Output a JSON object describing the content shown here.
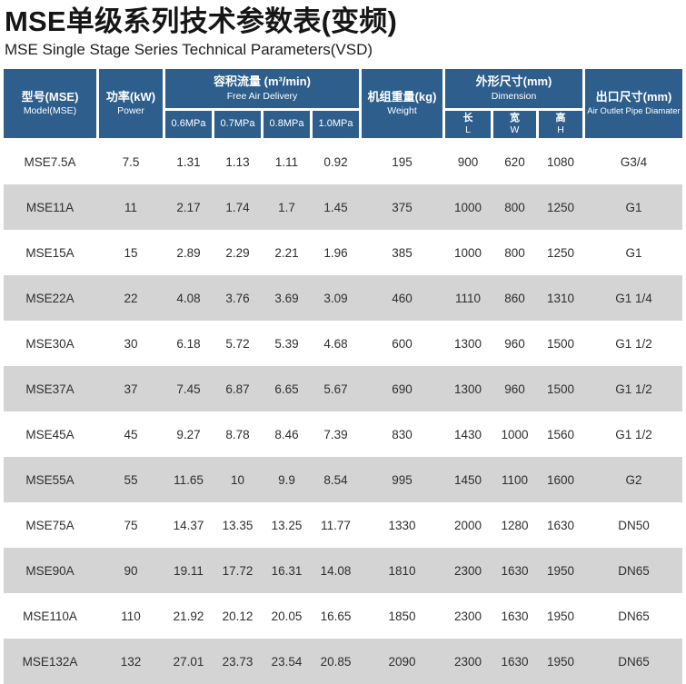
{
  "page": {
    "title": "MSE单级系列技术参数表(变频)",
    "subtitle": "MSE Single Stage Series Technical Parameters(VSD)"
  },
  "colors": {
    "header_bg": "#2d5e8c",
    "row_alt_bg": "#d4d4d4",
    "row_bg": "#ffffff",
    "data_text": "#2e2e2e"
  },
  "table": {
    "headers": {
      "model": {
        "zh": "型号(MSE)",
        "en": "Model(MSE)"
      },
      "power": {
        "zh": "功率(kW)",
        "en": "Power"
      },
      "fad": {
        "zh": "容积流量 (m³/min)",
        "en": "Free Air Delivery",
        "sub": [
          "0.6MPa",
          "0.7MPa",
          "0.8MPa",
          "1.0MPa"
        ]
      },
      "weight": {
        "zh": "机组重量(kg)",
        "en": "Weight"
      },
      "dimension": {
        "zh": "外形尺寸(mm)",
        "en": "Dimension",
        "sub": [
          {
            "zh": "长",
            "en": "L"
          },
          {
            "zh": "宽",
            "en": "W"
          },
          {
            "zh": "高",
            "en": "H"
          }
        ]
      },
      "outlet": {
        "zh": "出口尺寸(mm)",
        "en": "Air Outlet Pipe Diamater"
      }
    },
    "rows": [
      [
        "MSE7.5A",
        "7.5",
        "1.31",
        "1.13",
        "1.11",
        "0.92",
        "195",
        "900",
        "620",
        "1080",
        "G3/4"
      ],
      [
        "MSE11A",
        "11",
        "2.17",
        "1.74",
        "1.7",
        "1.45",
        "375",
        "1000",
        "800",
        "1250",
        "G1"
      ],
      [
        "MSE15A",
        "15",
        "2.89",
        "2.29",
        "2.21",
        "1.96",
        "385",
        "1000",
        "800",
        "1250",
        "G1"
      ],
      [
        "MSE22A",
        "22",
        "4.08",
        "3.76",
        "3.69",
        "3.09",
        "460",
        "1110",
        "860",
        "1310",
        "G1 1/4"
      ],
      [
        "MSE30A",
        "30",
        "6.18",
        "5.72",
        "5.39",
        "4.68",
        "600",
        "1300",
        "960",
        "1500",
        "G1 1/2"
      ],
      [
        "MSE37A",
        "37",
        "7.45",
        "6.87",
        "6.65",
        "5.67",
        "690",
        "1300",
        "960",
        "1500",
        "G1 1/2"
      ],
      [
        "MSE45A",
        "45",
        "9.27",
        "8.78",
        "8.46",
        "7.39",
        "830",
        "1430",
        "1000",
        "1560",
        "G1 1/2"
      ],
      [
        "MSE55A",
        "55",
        "11.65",
        "10",
        "9.9",
        "8.54",
        "995",
        "1450",
        "1100",
        "1600",
        "G2"
      ],
      [
        "MSE75A",
        "75",
        "14.37",
        "13.35",
        "13.25",
        "11.77",
        "1330",
        "2000",
        "1280",
        "1630",
        "DN50"
      ],
      [
        "MSE90A",
        "90",
        "19.11",
        "17.72",
        "16.31",
        "14.08",
        "1810",
        "2300",
        "1630",
        "1950",
        "DN65"
      ],
      [
        "MSE110A",
        "110",
        "21.92",
        "20.12",
        "20.05",
        "16.65",
        "1850",
        "2300",
        "1630",
        "1950",
        "DN65"
      ],
      [
        "MSE132A",
        "132",
        "27.01",
        "23.73",
        "23.54",
        "20.85",
        "2090",
        "2300",
        "1630",
        "1950",
        "DN65"
      ]
    ]
  }
}
